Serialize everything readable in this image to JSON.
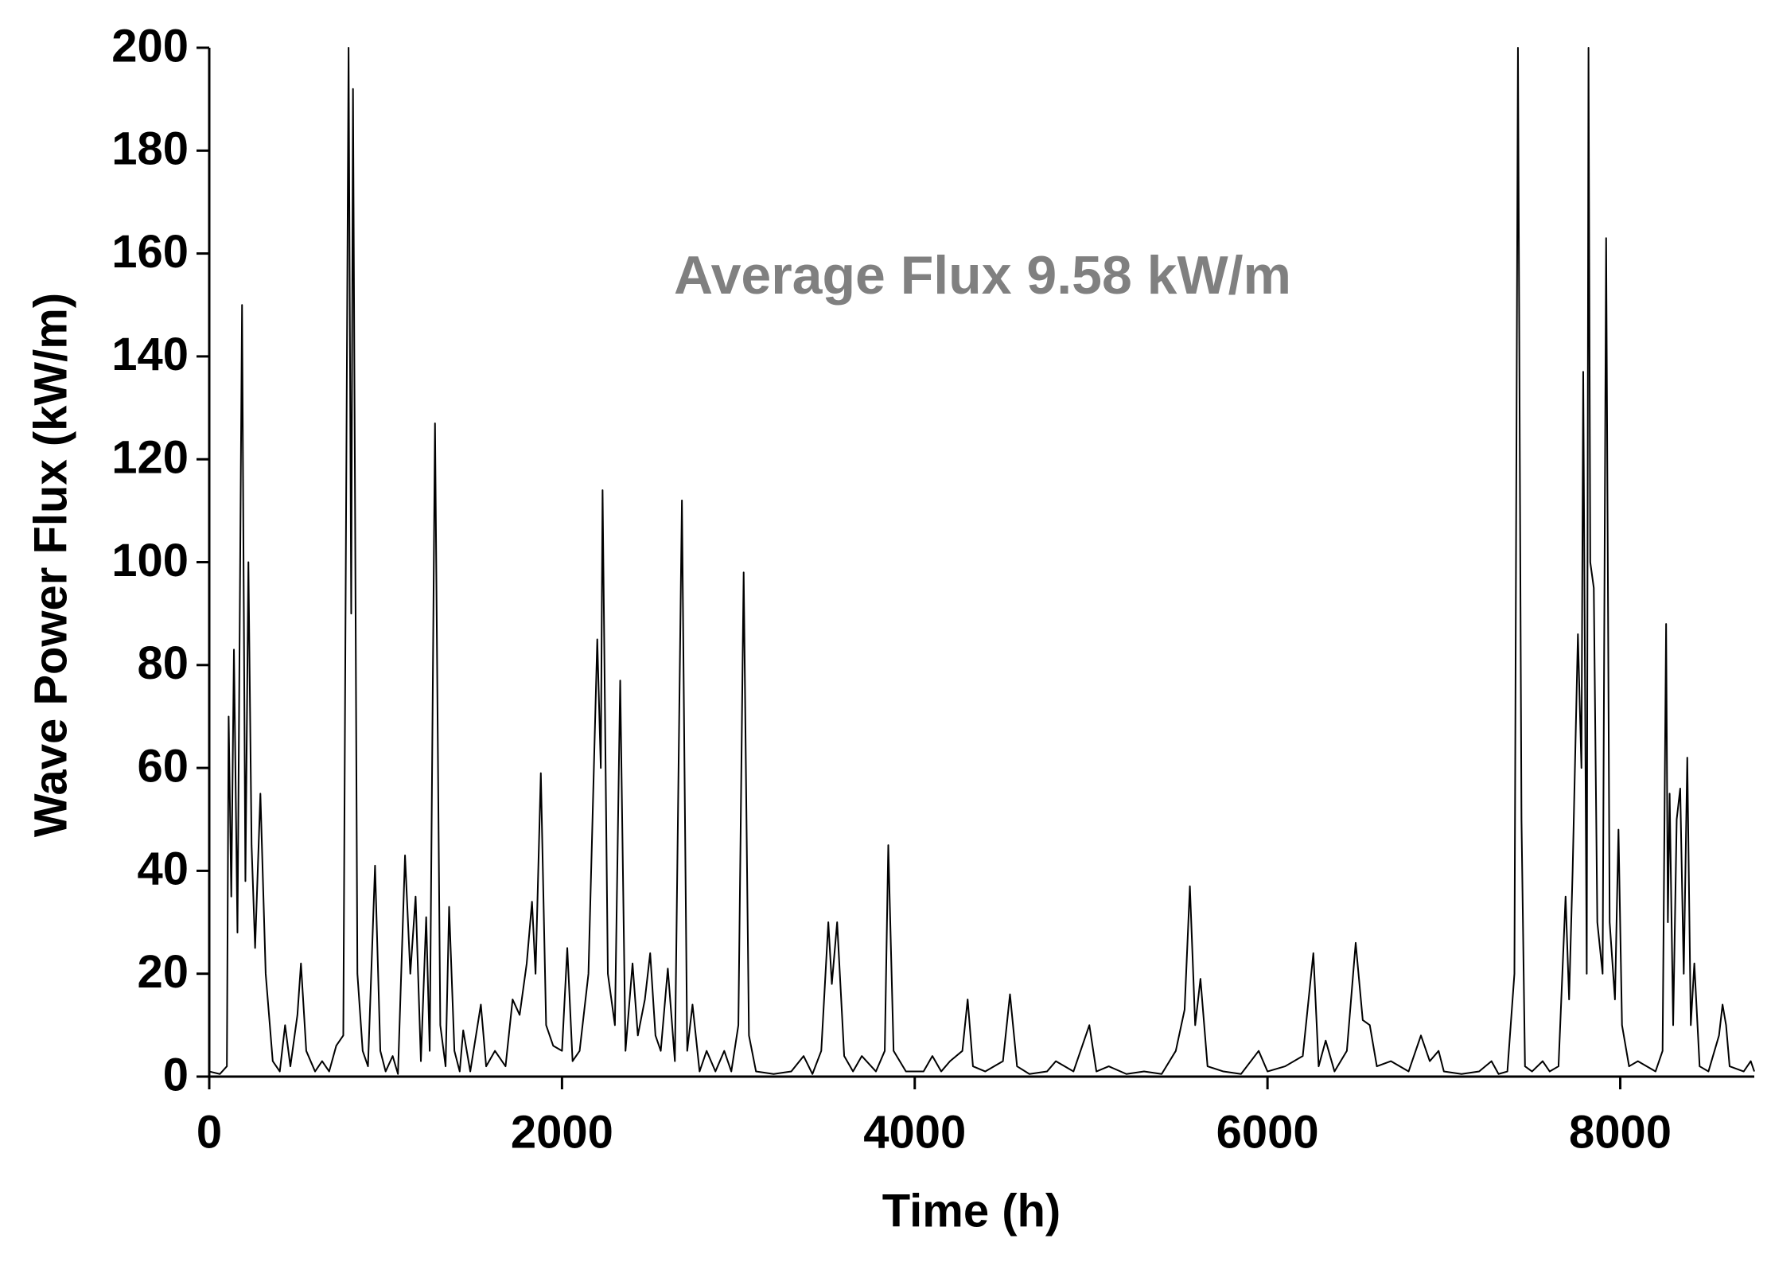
{
  "chart_data": {
    "type": "line",
    "annotation": "Average Flux 9.58 kW/m",
    "x_label": "Time (h)",
    "y_label": "Wave Power Flux (kW/m)",
    "xlim": [
      0,
      8760
    ],
    "ylim": [
      0,
      200
    ],
    "xticks": [
      0,
      2000,
      4000,
      6000,
      8000
    ],
    "yticks": [
      0,
      20,
      40,
      60,
      80,
      100,
      120,
      140,
      160,
      180,
      200
    ],
    "grid": false,
    "series": [
      {
        "name": "Wave Power Flux",
        "color": "#000000",
        "x": [
          0,
          60,
          100,
          110,
          125,
          140,
          160,
          186,
          205,
          222,
          240,
          260,
          290,
          320,
          360,
          400,
          430,
          460,
          500,
          520,
          550,
          600,
          640,
          680,
          720,
          760,
          790,
          805,
          815,
          840,
          870,
          900,
          940,
          970,
          1000,
          1040,
          1070,
          1110,
          1140,
          1170,
          1200,
          1230,
          1250,
          1280,
          1310,
          1340,
          1360,
          1390,
          1420,
          1440,
          1480,
          1540,
          1570,
          1620,
          1680,
          1720,
          1760,
          1800,
          1830,
          1850,
          1880,
          1910,
          1950,
          2000,
          2030,
          2060,
          2100,
          2150,
          2200,
          2220,
          2230,
          2260,
          2300,
          2330,
          2360,
          2400,
          2430,
          2470,
          2500,
          2530,
          2560,
          2600,
          2640,
          2680,
          2710,
          2740,
          2780,
          2820,
          2870,
          2920,
          2960,
          3000,
          3030,
          3060,
          3100,
          3200,
          3300,
          3370,
          3420,
          3470,
          3510,
          3530,
          3560,
          3600,
          3650,
          3700,
          3780,
          3830,
          3850,
          3880,
          3950,
          4050,
          4100,
          4150,
          4200,
          4270,
          4300,
          4330,
          4400,
          4500,
          4540,
          4580,
          4650,
          4750,
          4800,
          4900,
          4990,
          5030,
          5100,
          5200,
          5300,
          5400,
          5480,
          5530,
          5560,
          5590,
          5620,
          5660,
          5750,
          5850,
          5950,
          6000,
          6100,
          6200,
          6260,
          6290,
          6330,
          6380,
          6450,
          6500,
          6540,
          6580,
          6620,
          6700,
          6800,
          6870,
          6920,
          6970,
          7000,
          7100,
          7200,
          7270,
          7310,
          7360,
          7400,
          7420,
          7440,
          7460,
          7500,
          7560,
          7600,
          7650,
          7690,
          7710,
          7730,
          7760,
          7780,
          7790,
          7810,
          7820,
          7830,
          7850,
          7870,
          7900,
          7920,
          7940,
          7970,
          7990,
          8010,
          8050,
          8100,
          8200,
          8240,
          8260,
          8270,
          8280,
          8300,
          8320,
          8340,
          8360,
          8380,
          8400,
          8420,
          8450,
          8500,
          8560,
          8580,
          8600,
          8620,
          8700,
          8740,
          8760
        ],
        "values": [
          1,
          0.5,
          2,
          70,
          35,
          83,
          28,
          150,
          38,
          100,
          45,
          25,
          55,
          20,
          3,
          1,
          10,
          2,
          12,
          22,
          5,
          1,
          3,
          1,
          6,
          8,
          200,
          90,
          192,
          20,
          5,
          2,
          41,
          5,
          1,
          4,
          0.5,
          43,
          20,
          35,
          3,
          31,
          5,
          127,
          10,
          2,
          33,
          5,
          1,
          9,
          1,
          14,
          2,
          5,
          2,
          15,
          12,
          22,
          34,
          20,
          59,
          10,
          6,
          5,
          25,
          3,
          5,
          20,
          85,
          60,
          114,
          20,
          10,
          77,
          5,
          22,
          8,
          15,
          24,
          8,
          5,
          21,
          3,
          112,
          5,
          14,
          1,
          5,
          1,
          5,
          1,
          10,
          98,
          8,
          1,
          0.5,
          1,
          4,
          0.5,
          5,
          30,
          18,
          30,
          4,
          1,
          4,
          1,
          5,
          45,
          5,
          1,
          1,
          4,
          1,
          3,
          5,
          15,
          2,
          1,
          3,
          16,
          2,
          0.5,
          1,
          3,
          1,
          10,
          1,
          2,
          0.5,
          1,
          0.5,
          5,
          13,
          37,
          10,
          19,
          2,
          1,
          0.5,
          5,
          1,
          2,
          4,
          24,
          2,
          7,
          1,
          5,
          26,
          11,
          10,
          2,
          3,
          1,
          8,
          3,
          5,
          1,
          0.5,
          1,
          3,
          0.5,
          1,
          20,
          200,
          50,
          2,
          1,
          3,
          1,
          2,
          35,
          15,
          40,
          86,
          60,
          137,
          20,
          200,
          100,
          95,
          30,
          20,
          163,
          30,
          15,
          48,
          10,
          2,
          3,
          1,
          5,
          88,
          30,
          55,
          10,
          50,
          56,
          20,
          62,
          10,
          22,
          2,
          1,
          8,
          14,
          10,
          2,
          1,
          3,
          1
        ]
      }
    ]
  }
}
